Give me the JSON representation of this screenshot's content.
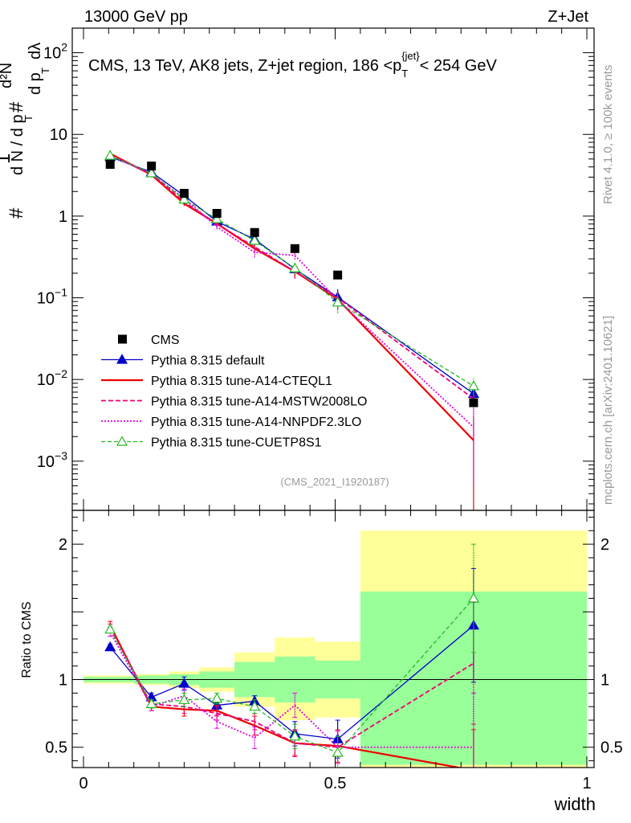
{
  "header": {
    "left": "13000 GeV pp",
    "right": "Z+Jet"
  },
  "side_labels": {
    "rivet": "Rivet 4.1.0, ≥ 100k events",
    "mcplots": "mcplots.cern.ch [arXiv:2401.10621]"
  },
  "colors": {
    "data": "#000000",
    "default": "#0000cc",
    "cteql1": "#ee0000",
    "mstw": "#ee0077",
    "nnpdf": "#dd00dd",
    "cuetp8s1": "#22bb22",
    "band_yellow": "#ffff99",
    "band_green": "#99ff99"
  },
  "chart_data": {
    "type": "line",
    "title": "CMS, 13 TeV, AK8 jets, Z+jet region, 186 <p_T^{jet}< 254 GeV",
    "title_parts": {
      "pre": "CMS, 13 TeV, AK8 jets, Z+jet region, 186 <p",
      "sub": "T",
      "sup": "{jet}",
      "post": "< 254 GeV"
    },
    "analysis_id": "(CMS_2021_I1920187)",
    "xlabel": "width",
    "ylabel": "1/dN/dp_T d²N/dp_T dλ",
    "ylabel_parts": {
      "hash": "#",
      "one": "1",
      "dn": "d N / d p",
      "d2n": "d²N",
      "dpt": "d p",
      "dl": "dλ",
      "t": "T"
    },
    "ratio_ylabel": "Ratio to CMS",
    "xlim": [
      0,
      1
    ],
    "ylim": [
      0.00025,
      200
    ],
    "ratio_ylim": [
      0.35,
      2.25
    ],
    "x_ticks": [
      "0",
      "0.5",
      "1"
    ],
    "y_ticks": [
      {
        "v": 0.001,
        "b": "10",
        "e": "−3"
      },
      {
        "v": 0.01,
        "b": "10",
        "e": "−2"
      },
      {
        "v": 0.1,
        "b": "10",
        "e": "−1"
      },
      {
        "v": 1,
        "b": "1",
        "e": ""
      },
      {
        "v": 10,
        "b": "10",
        "e": ""
      },
      {
        "v": 100,
        "b": "10",
        "e": "2"
      }
    ],
    "ratio_y_ticks": [
      "0.5",
      "1",
      "2"
    ],
    "bin_edges": [
      0,
      0.1,
      0.17,
      0.23,
      0.3,
      0.38,
      0.46,
      0.55,
      1.0
    ],
    "bin_centers": [
      0.053,
      0.135,
      0.2,
      0.265,
      0.34,
      0.42,
      0.505,
      0.775
    ],
    "data": {
      "name": "CMS",
      "values": [
        4.3,
        4.1,
        1.9,
        1.08,
        0.63,
        0.4,
        0.19,
        0.0052
      ]
    },
    "band_yellow": [
      [
        0.97,
        1.03
      ],
      [
        0.96,
        1.04
      ],
      [
        0.94,
        1.06
      ],
      [
        0.91,
        1.09
      ],
      [
        0.8,
        1.2
      ],
      [
        0.7,
        1.31
      ],
      [
        0.72,
        1.28
      ],
      [
        0.34,
        2.1
      ]
    ],
    "band_green": [
      [
        0.98,
        1.02
      ],
      [
        0.97,
        1.03
      ],
      [
        0.96,
        1.04
      ],
      [
        0.94,
        1.06
      ],
      [
        0.87,
        1.13
      ],
      [
        0.83,
        1.17
      ],
      [
        0.86,
        1.14
      ],
      [
        0.37,
        1.65
      ]
    ],
    "series": [
      {
        "name": "Pythia 8.315 default",
        "color_key": "default",
        "dash": "",
        "width": 1.3,
        "marker": "tri-fill",
        "values": [
          5.3,
          3.45,
          1.78,
          0.86,
          0.52,
          0.225,
          0.102,
          0.0067
        ],
        "ratio": [
          1.24,
          0.87,
          0.97,
          0.81,
          0.84,
          0.6,
          0.56,
          1.4
        ],
        "ratio_err": [
          0.02,
          0.03,
          0.05,
          0.03,
          0.04,
          0.09,
          0.14,
          0.42
        ]
      },
      {
        "name": "Pythia 8.315 tune-A14-CTEQL1",
        "color_key": "cteql1",
        "dash": "",
        "width": 2.2,
        "marker": "none",
        "values": [
          5.8,
          3.2,
          1.42,
          0.81,
          0.4,
          0.21,
          0.096,
          0.0018
        ],
        "ratio": [
          1.4,
          0.8,
          0.78,
          0.77,
          0.66,
          0.53,
          0.51,
          0.33
        ],
        "ratio_err": [
          0.03,
          0.03,
          0.05,
          0.04,
          0.07,
          0.09,
          0.12,
          0.3
        ]
      },
      {
        "name": "Pythia 8.315 tune-A14-MSTW2008LO",
        "color_key": "mstw",
        "dash": "6,3",
        "width": 1.8,
        "marker": "none",
        "values": [
          5.6,
          3.3,
          1.5,
          0.8,
          0.42,
          0.21,
          0.1,
          0.0058
        ],
        "ratio": [
          1.38,
          0.82,
          0.8,
          0.75,
          0.69,
          0.53,
          0.5,
          1.12
        ],
        "ratio_err": [
          0.03,
          0.03,
          0.05,
          0.05,
          0.06,
          0.1,
          0.12,
          0.45
        ]
      },
      {
        "name": "Pythia 8.315 tune-A14-NNPDF2.3LO",
        "color_key": "nnpdf",
        "dash": "2,2",
        "width": 1.8,
        "marker": "none",
        "values": [
          5.5,
          3.25,
          1.65,
          0.74,
          0.36,
          0.33,
          0.094,
          0.0026
        ],
        "ratio": [
          1.35,
          0.8,
          0.88,
          0.69,
          0.57,
          0.81,
          0.5,
          0.5
        ],
        "ratio_err": [
          0.03,
          0.03,
          0.05,
          0.05,
          0.08,
          0.09,
          0.12,
          0.4
        ]
      },
      {
        "name": "Pythia 8.315 tune-CUETP8S1",
        "color_key": "cuetp8s1",
        "dash": "5,3",
        "width": 1.3,
        "marker": "tri-open",
        "values": [
          5.5,
          3.35,
          1.6,
          0.92,
          0.5,
          0.23,
          0.088,
          0.0083
        ],
        "ratio": [
          1.37,
          0.82,
          0.85,
          0.86,
          0.8,
          0.58,
          0.46,
          1.6
        ],
        "ratio_err": [
          0.02,
          0.03,
          0.05,
          0.04,
          0.05,
          0.09,
          0.12,
          0.4
        ]
      }
    ]
  }
}
